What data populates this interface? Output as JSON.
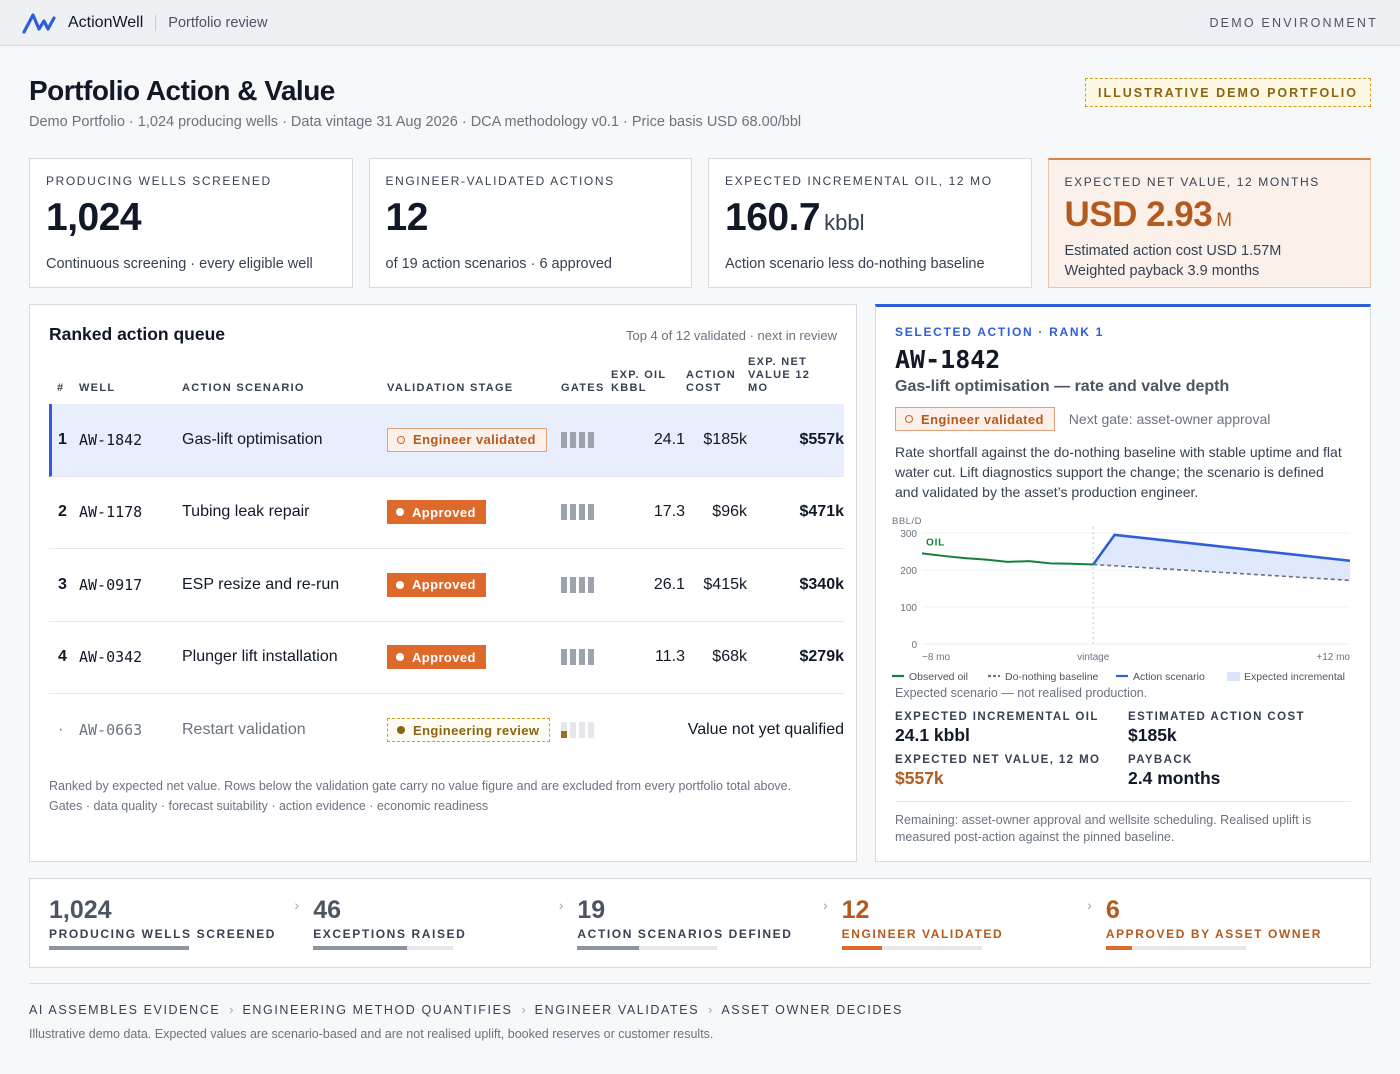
{
  "app": {
    "brand": "ActionWell",
    "breadcrumb": "Portfolio review",
    "environment": "DEMO ENVIRONMENT"
  },
  "header": {
    "title": "Portfolio Action & Value",
    "subtitle": "Demo Portfolio · 1,024 producing wells · Data vintage 31 Aug 2026 · DCA methodology v0.1 · Price basis USD 68.00/bbl",
    "badge": "ILLUSTRATIVE DEMO PORTFOLIO"
  },
  "kpis": [
    {
      "label": "PRODUCING WELLS SCREENED",
      "value": "1,024",
      "unit": "",
      "note": "Continuous screening · every eligible well"
    },
    {
      "label": "ENGINEER-VALIDATED ACTIONS",
      "value": "12",
      "unit": "",
      "note": "of 19 action scenarios · 6 approved"
    },
    {
      "label": "EXPECTED INCREMENTAL OIL, 12 MO",
      "value": "160.7",
      "unit": "kbbl",
      "note": "Action scenario less do-nothing baseline"
    },
    {
      "label": "EXPECTED NET VALUE, 12 MONTHS",
      "value": "USD 2.93",
      "unit": "M",
      "note": "Estimated action cost USD 1.57M",
      "note2": "Weighted payback 3.9 months"
    }
  ],
  "queue": {
    "title": "Ranked action queue",
    "meta": "Top 4 of 12 validated · next in review",
    "columns": {
      "rank": "#",
      "well": "WELL",
      "scenario": "ACTION SCENARIO",
      "stage": "VALIDATION STAGE",
      "gates": "GATES",
      "oil": "EXP. OIL KBBL",
      "cost": "ACTION COST",
      "value": "EXP. NET VALUE 12 MO"
    },
    "rows": [
      {
        "rank": "1",
        "well": "AW-1842",
        "scenario": "Gas-lift optimisation",
        "stage": "Engineer validated",
        "oil": "24.1",
        "cost": "$185k",
        "value": "$557k"
      },
      {
        "rank": "2",
        "well": "AW-1178",
        "scenario": "Tubing leak repair",
        "stage": "Approved",
        "oil": "17.3",
        "cost": "$96k",
        "value": "$471k"
      },
      {
        "rank": "3",
        "well": "AW-0917",
        "scenario": "ESP resize and re-run",
        "stage": "Approved",
        "oil": "26.1",
        "cost": "$415k",
        "value": "$340k"
      },
      {
        "rank": "4",
        "well": "AW-0342",
        "scenario": "Plunger lift installation",
        "stage": "Approved",
        "oil": "11.3",
        "cost": "$68k",
        "value": "$279k"
      },
      {
        "rank": "·",
        "well": "AW-0663",
        "scenario": "Restart validation",
        "stage": "Engineering review",
        "not_qualified": "Value not yet qualified"
      }
    ],
    "footnote1": "Ranked by expected net value. Rows below the validation gate carry no value figure and are excluded from every portfolio total above.",
    "footnote2": "Gates · data quality · forecast suitability · action evidence · economic readiness"
  },
  "detail": {
    "kicker": "SELECTED ACTION · RANK 1",
    "well": "AW-1842",
    "scenario": "Gas-lift optimisation — rate and valve depth",
    "status": "Engineer validated",
    "next_gate": "Next gate: asset-owner approval",
    "description": "Rate shortfall against the do-nothing baseline with stable uptime and flat water cut. Lift diagnostics support the change; the scenario is defined and validated by the asset’s production engineer.",
    "chart_note": "Expected scenario — not realised production.",
    "stats": [
      {
        "label": "EXPECTED INCREMENTAL OIL",
        "value": "24.1 kbbl"
      },
      {
        "label": "ESTIMATED ACTION COST",
        "value": "$185k"
      },
      {
        "label": "EXPECTED NET VALUE, 12 MO",
        "value": "$557k"
      },
      {
        "label": "PAYBACK",
        "value": "2.4 months"
      }
    ],
    "footnote": "Remaining: asset-owner approval and wellsite scheduling. Realised uplift is measured post-action against the pinned baseline."
  },
  "chart_data": {
    "type": "line",
    "ylabel": "BBL/D",
    "series_label": "OIL",
    "ylim": [
      0,
      300
    ],
    "yticks": [
      "300",
      "200",
      "100",
      "0"
    ],
    "xticks": [
      "−8 mo",
      "vintage",
      "+12 mo"
    ],
    "x": [
      -8,
      -7,
      -6,
      -5,
      -4,
      -3,
      -2,
      -1,
      0,
      1,
      12
    ],
    "series": [
      {
        "name": "Observed oil",
        "x": [
          -8,
          -7,
          -6,
          -5,
          -4,
          -3,
          -2,
          -1,
          0
        ],
        "values": [
          245,
          238,
          232,
          228,
          222,
          224,
          218,
          217,
          215
        ],
        "color": "#15803d"
      },
      {
        "name": "Do-nothing baseline",
        "x": [
          0,
          12
        ],
        "values": [
          215,
          172
        ],
        "color": "#6b7280",
        "dashed": true
      },
      {
        "name": "Action scenario",
        "x": [
          0,
          1,
          12
        ],
        "values": [
          215,
          295,
          225
        ],
        "color": "#2f5fd8"
      }
    ],
    "area": {
      "name": "Expected incremental",
      "color": "#dbe4fb"
    }
  },
  "funnel": [
    {
      "value": "1,024",
      "label": "PRODUCING WELLS SCREENED",
      "fraction": 1.0,
      "accent": false
    },
    {
      "value": "46",
      "label": "EXCEPTIONS RAISED",
      "fraction": 0.67,
      "accent": false
    },
    {
      "value": "19",
      "label": "ACTION SCENARIOS DEFINED",
      "fraction": 0.44,
      "accent": false
    },
    {
      "value": "12",
      "label": "ENGINEER VALIDATED",
      "fraction": 0.29,
      "accent": true
    },
    {
      "value": "6",
      "label": "APPROVED BY ASSET OWNER",
      "fraction": 0.19,
      "accent": true
    }
  ],
  "flow": [
    "AI ASSEMBLES EVIDENCE",
    "ENGINEERING METHOD QUANTIFIES",
    "ENGINEER VALIDATES",
    "ASSET OWNER DECIDES"
  ],
  "disclaimer": "Illustrative demo data. Expected values are scenario-based and are not realised uplift, booked reserves or customer results.",
  "colors": {
    "accent_blue": "#2f5fd8",
    "accent_orange": "#dd6a2a",
    "value_orange": "#b35a1f",
    "observed_green": "#15803d"
  }
}
